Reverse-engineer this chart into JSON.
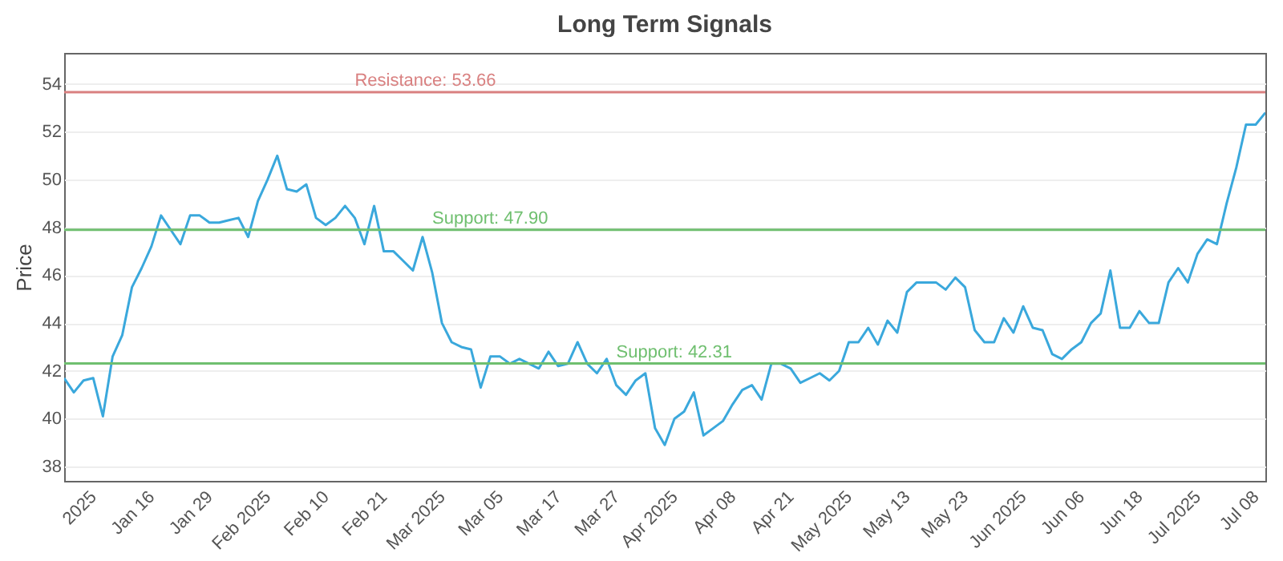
{
  "chart_data": {
    "type": "line",
    "title": "Long Term Signals",
    "ylabel": "Price",
    "categories": [
      null,
      null,
      null,
      "2025",
      null,
      null,
      null,
      null,
      null,
      "Jan 16",
      null,
      null,
      null,
      null,
      null,
      "Jan 29",
      null,
      null,
      null,
      null,
      null,
      "Feb 2025",
      null,
      null,
      null,
      null,
      null,
      "Feb 10",
      null,
      null,
      null,
      null,
      null,
      "Feb 21",
      null,
      null,
      null,
      null,
      null,
      "Mar 2025",
      null,
      null,
      null,
      null,
      null,
      "Mar 05",
      null,
      null,
      null,
      null,
      null,
      "Mar 17",
      null,
      null,
      null,
      null,
      null,
      "Mar 27",
      null,
      null,
      null,
      null,
      null,
      "Apr 2025",
      null,
      null,
      null,
      null,
      null,
      "Apr 08",
      null,
      null,
      null,
      null,
      null,
      "Apr 21",
      null,
      null,
      null,
      null,
      null,
      "May 2025",
      null,
      null,
      null,
      null,
      null,
      "May 13",
      null,
      null,
      null,
      null,
      null,
      "May 23",
      null,
      null,
      null,
      null,
      null,
      "Jun 2025",
      null,
      null,
      null,
      null,
      null,
      "Jun 06",
      null,
      null,
      null,
      null,
      null,
      "Jun 18",
      null,
      null,
      null,
      null,
      null,
      "Jul 2025",
      null,
      null,
      null,
      null,
      null,
      "Jul 08",
      null
    ],
    "series": [
      {
        "color": "#3aa8dc",
        "values": [
          41.7,
          41.1,
          41.6,
          41.7,
          40.1,
          42.6,
          43.5,
          45.5,
          46.3,
          47.2,
          48.5,
          47.9,
          47.3,
          48.5,
          48.5,
          48.2,
          48.2,
          48.3,
          48.4,
          47.6,
          49.1,
          50.0,
          51.0,
          49.6,
          49.5,
          49.8,
          48.4,
          48.1,
          48.4,
          48.9,
          48.4,
          47.3,
          48.9,
          47.0,
          47.0,
          46.6,
          46.2,
          47.6,
          46.1,
          44.0,
          43.2,
          43.0,
          42.9,
          41.3,
          42.6,
          42.6,
          42.3,
          42.5,
          42.3,
          42.1,
          42.8,
          42.2,
          42.3,
          43.2,
          42.3,
          41.9,
          42.5,
          41.4,
          41.0,
          41.6,
          41.9,
          39.6,
          38.9,
          40.0,
          40.3,
          41.1,
          39.3,
          39.6,
          39.9,
          40.6,
          41.2,
          41.4,
          40.8,
          42.3,
          42.3,
          42.1,
          41.5,
          41.7,
          41.9,
          41.6,
          42.0,
          43.2,
          43.2,
          43.8,
          43.1,
          44.1,
          43.6,
          45.3,
          45.7,
          45.7,
          45.7,
          45.4,
          45.9,
          45.5,
          43.7,
          43.2,
          43.2,
          44.2,
          43.6,
          44.7,
          43.8,
          43.7,
          42.7,
          42.5,
          42.9,
          43.2,
          44.0,
          44.4,
          46.2,
          43.8,
          43.8,
          44.5,
          44.0,
          44.0,
          45.7,
          46.3,
          45.7,
          46.9,
          47.5,
          47.3,
          49.0,
          50.5,
          52.3,
          52.3,
          52.8
        ]
      }
    ],
    "ylim": [
      37.4,
      55.3
    ],
    "yticks": [
      38,
      40,
      42,
      44,
      46,
      48,
      50,
      52,
      54
    ],
    "grid": "y",
    "ref_lines": [
      {
        "axis": "y",
        "value": 53.66,
        "label": "Resistance: 53.66",
        "color": "#d98080"
      },
      {
        "axis": "y",
        "value": 47.9,
        "label": "Support: 47.90",
        "color": "#6fbf6f"
      },
      {
        "axis": "y",
        "value": 42.31,
        "label": "Support: 42.31",
        "color": "#6fbf6f"
      }
    ]
  }
}
